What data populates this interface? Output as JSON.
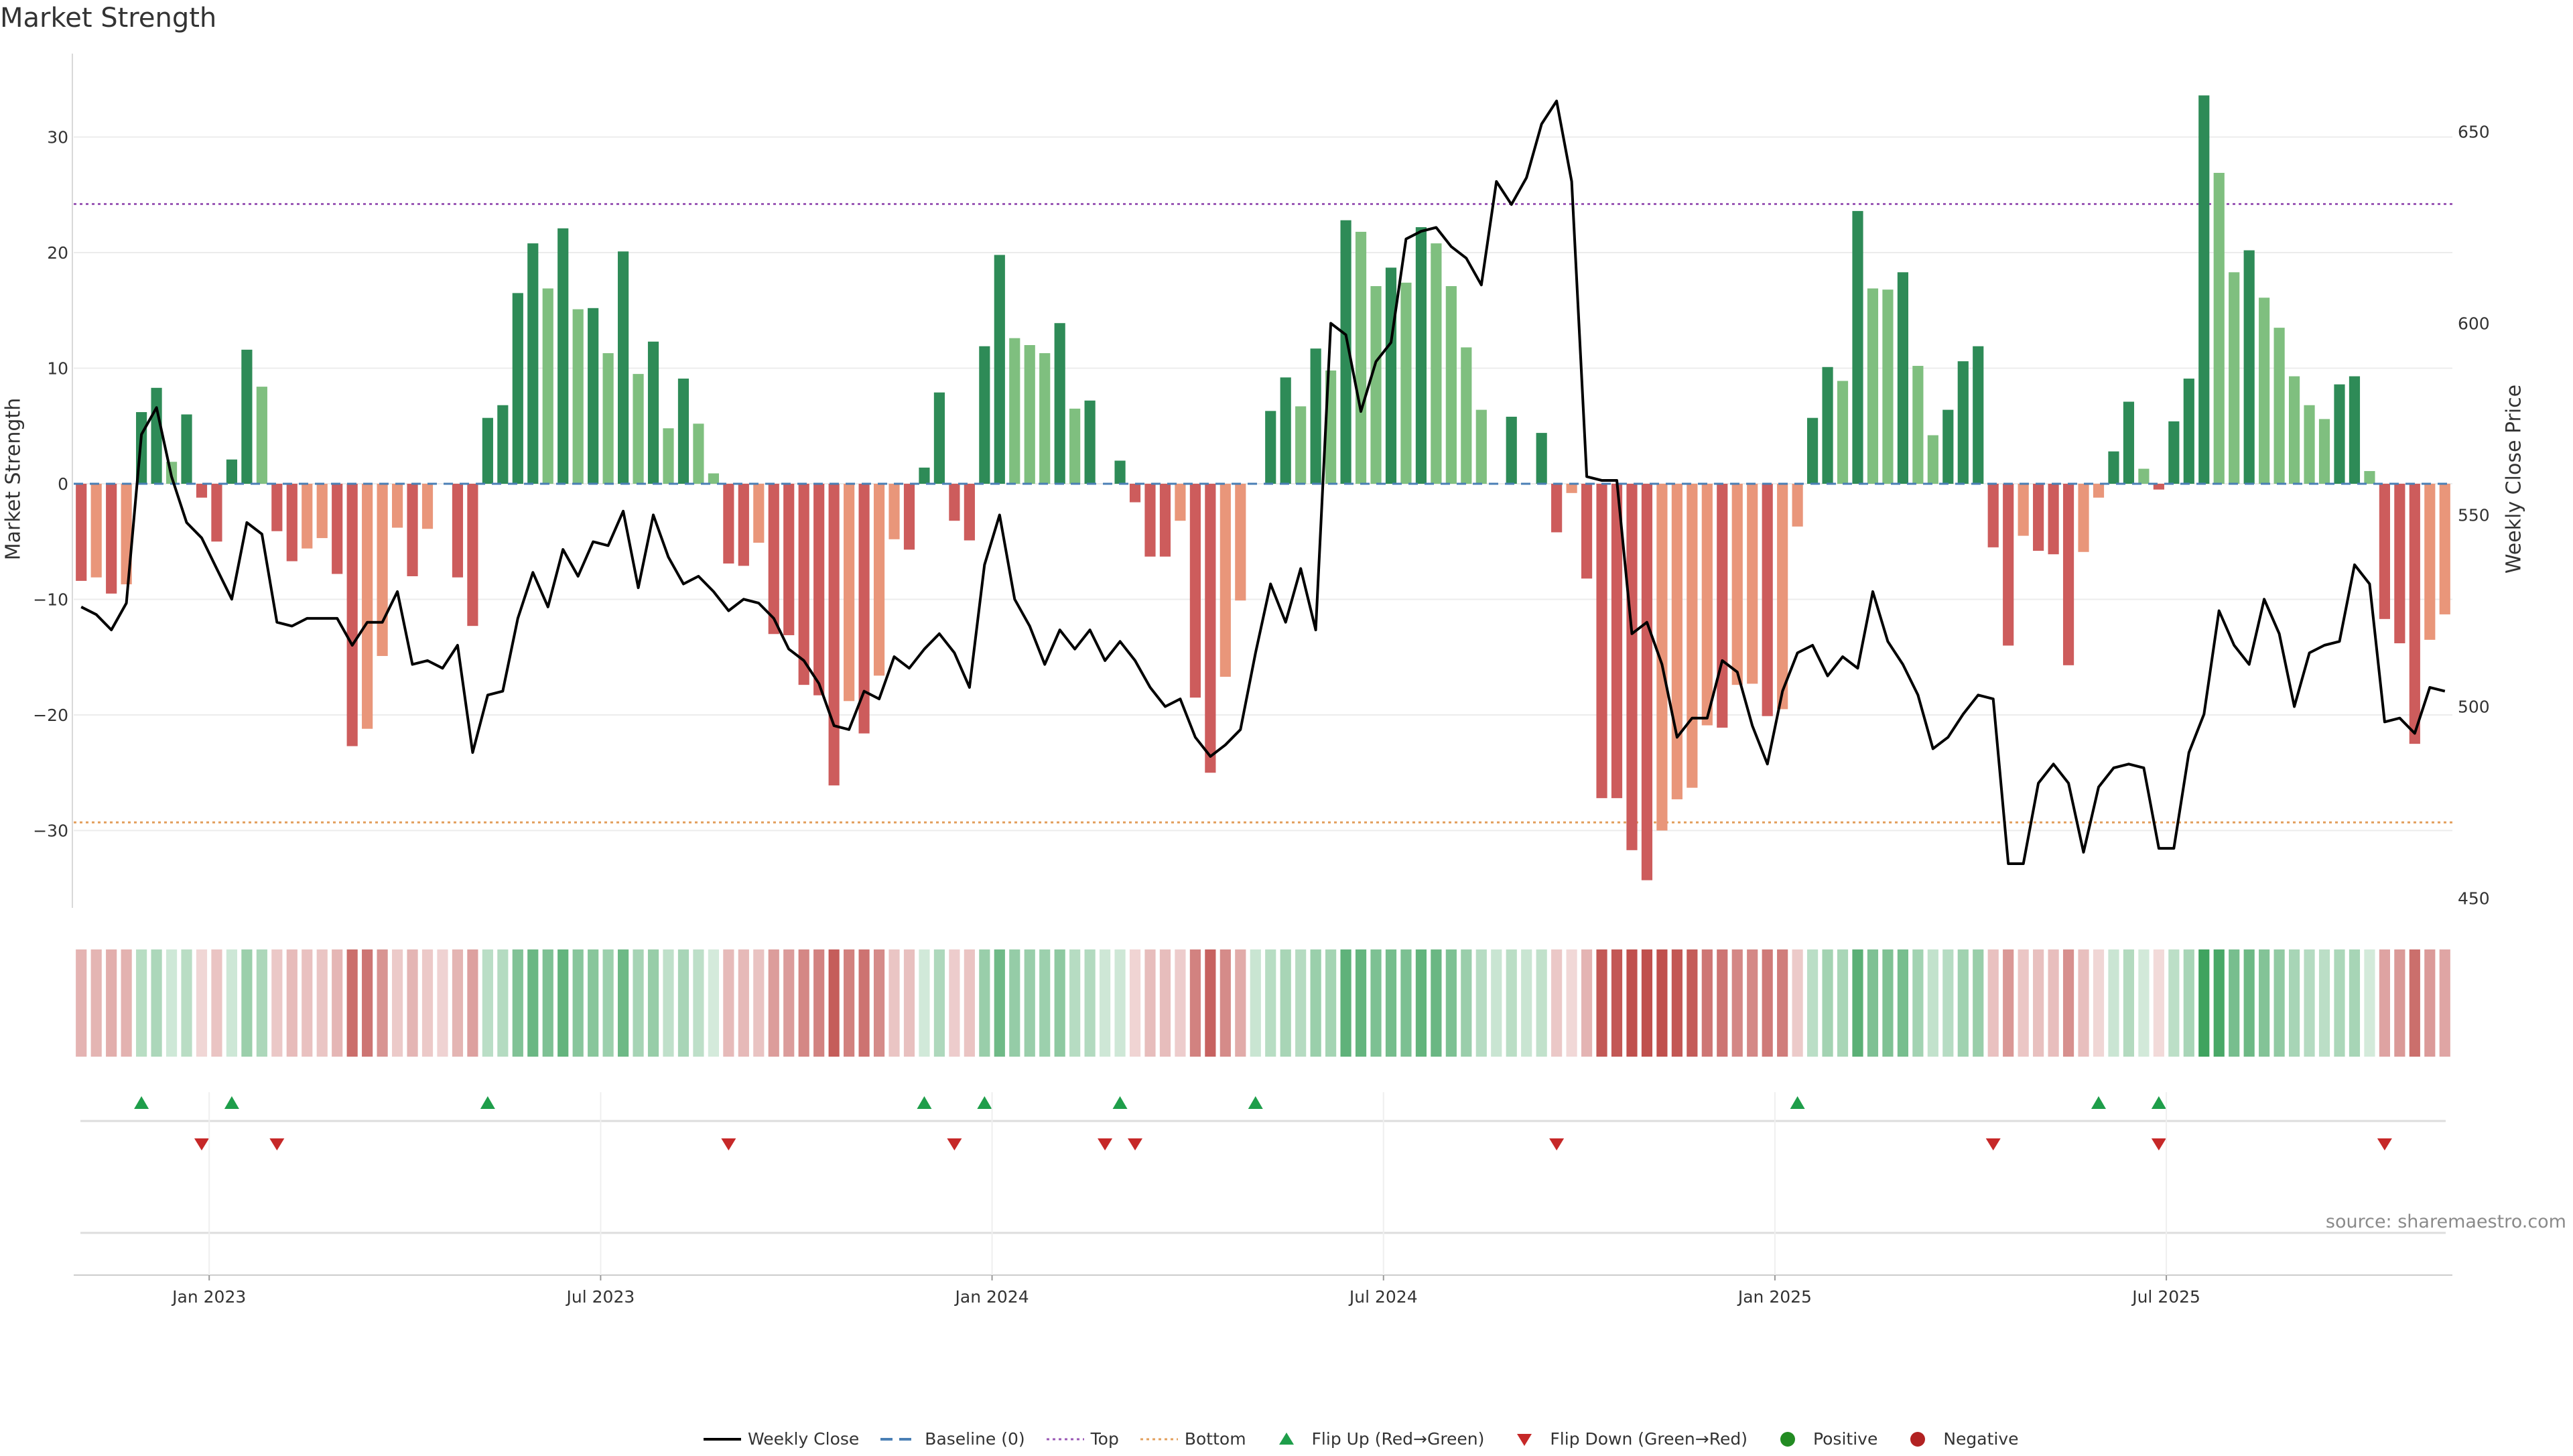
{
  "title": "Market Strength",
  "source": "source: sharemaestro.com",
  "colors": {
    "strong_green": "#2e8b57",
    "light_green": "#7fbf7f",
    "strong_red": "#cd5c5c",
    "light_red": "#e9967a",
    "price_line": "#000000",
    "baseline": "#4a7fb5",
    "top_line": "#9b59b6",
    "bottom_line": "#e3a05e",
    "flip_up": "#1e9e4a",
    "flip_down": "#c62828",
    "positive": "#228b22",
    "negative": "#b22222"
  },
  "legend": [
    {
      "key": "weekly_close",
      "label": "Weekly Close",
      "marker": "line"
    },
    {
      "key": "baseline",
      "label": "Baseline (0)",
      "marker": "dash"
    },
    {
      "key": "top",
      "label": "Top",
      "marker": "dotted"
    },
    {
      "key": "bottom",
      "label": "Bottom",
      "marker": "dotted"
    },
    {
      "key": "flip_up",
      "label": "Flip Up (Red→Green)",
      "marker": "triangle-up"
    },
    {
      "key": "flip_down",
      "label": "Flip Down (Green→Red)",
      "marker": "triangle-down"
    },
    {
      "key": "positive",
      "label": "Positive",
      "marker": "circle"
    },
    {
      "key": "negative",
      "label": "Negative",
      "marker": "circle"
    }
  ],
  "chart_data": {
    "type": "bar",
    "title": "Market Strength",
    "ylabel": "Market Strength",
    "ylabel_right": "Weekly Close Price",
    "ylim": [
      -37,
      37
    ],
    "yticks": [
      -30,
      -20,
      -10,
      0,
      10,
      20,
      30
    ],
    "y2lim": [
      445,
      667
    ],
    "y2ticks": [
      450,
      500,
      550,
      600,
      650
    ],
    "x_ticks": [
      {
        "label": "Jan 2023",
        "week": 9
      },
      {
        "label": "Jul 2023",
        "week": 35
      },
      {
        "label": "Jan 2024",
        "week": 61
      },
      {
        "label": "Jul 2024",
        "week": 87
      },
      {
        "label": "Jan 2025",
        "week": 113
      },
      {
        "label": "Jul 2025",
        "week": 139
      }
    ],
    "top_level": 24.2,
    "bottom_level": -29.3,
    "baseline": 0,
    "legend_position": "bottom-center",
    "grid": true,
    "strength": [
      -8.4,
      -8.1,
      -9.5,
      -8.7,
      6.2,
      8.3,
      1.9,
      6.0,
      -1.2,
      -5.0,
      2.1,
      11.6,
      8.4,
      -4.1,
      -6.7,
      -5.6,
      -4.7,
      -7.8,
      -22.7,
      -21.2,
      -14.9,
      -3.8,
      -8.0,
      -3.9,
      0,
      -8.1,
      -12.3,
      5.7,
      6.8,
      16.5,
      20.8,
      16.9,
      22.1,
      15.1,
      15.2,
      11.3,
      20.1,
      9.5,
      12.3,
      4.8,
      9.1,
      5.2,
      0.9,
      -6.9,
      -7.1,
      -5.1,
      -13.0,
      -13.1,
      -17.4,
      -18.3,
      -26.1,
      -18.8,
      -21.6,
      -16.6,
      -4.8,
      -5.7,
      1.4,
      7.9,
      -3.2,
      -4.9,
      11.9,
      19.8,
      12.6,
      12.0,
      11.3,
      13.9,
      6.5,
      7.2,
      0,
      2.0,
      -1.6,
      -6.3,
      -6.3,
      -3.2,
      -18.5,
      -25.0,
      -16.7,
      -10.1,
      0,
      6.3,
      9.2,
      6.7,
      11.7,
      9.8,
      22.8,
      21.8,
      17.1,
      18.7,
      17.4,
      22.2,
      20.8,
      17.1,
      11.8,
      6.4,
      0,
      5.8,
      0,
      4.4,
      -4.2,
      -0.8,
      -8.2,
      -27.2,
      -27.2,
      -31.7,
      -34.3,
      -30.0,
      -27.3,
      -26.3,
      -20.9,
      -21.1,
      -17.4,
      -17.3,
      -20.1,
      -19.5,
      -3.7,
      5.7,
      10.1,
      8.9,
      23.6,
      16.9,
      16.8,
      18.3,
      10.2,
      4.2,
      6.4,
      10.6,
      11.9,
      -5.5,
      -14.0,
      -4.5,
      -5.8,
      -6.1,
      -15.7,
      -5.9,
      -1.2,
      2.8,
      7.1,
      1.3,
      -0.5,
      5.4,
      9.1,
      33.6,
      26.9,
      18.3,
      20.2,
      16.1,
      13.5,
      9.3,
      6.8,
      5.6,
      8.6,
      9.3,
      1.1,
      -11.7,
      -13.8,
      -22.5,
      -13.5,
      -11.3
    ],
    "weekly_close": [
      526,
      524,
      520,
      527,
      571,
      578,
      560,
      548,
      544,
      536,
      528,
      548,
      545,
      522,
      521,
      523,
      523,
      523,
      516,
      522,
      522,
      530,
      511,
      512,
      510,
      516,
      488,
      503,
      504,
      523,
      535,
      526,
      541,
      534,
      543,
      542,
      551,
      531,
      550,
      539,
      532,
      534,
      530,
      525,
      528,
      527,
      523,
      515,
      512,
      506,
      495,
      494,
      504,
      502,
      513,
      510,
      515,
      519,
      514,
      505,
      537,
      550,
      528,
      521,
      511,
      520,
      515,
      520,
      512,
      517,
      512,
      505,
      500,
      502,
      492,
      487,
      490,
      494,
      514,
      532,
      522,
      536,
      520,
      600,
      597,
      577,
      590,
      595,
      622,
      624,
      625,
      620,
      617,
      610,
      637,
      631,
      638,
      652,
      658,
      637,
      560,
      559,
      559,
      519,
      522,
      511,
      492,
      497,
      497,
      512,
      509,
      495,
      485,
      504,
      514,
      516,
      508,
      513,
      510,
      530,
      517,
      511,
      503,
      489,
      492,
      498,
      503,
      502,
      459,
      459,
      480,
      485,
      480,
      462,
      479,
      484,
      485,
      484,
      463,
      463,
      488,
      498,
      525,
      516,
      511,
      528,
      519,
      500,
      514,
      516,
      517,
      537,
      532,
      496,
      497,
      493,
      505,
      504
    ],
    "state_strip_values": [
      -8.4,
      -8.1,
      -9.5,
      -8.7,
      6.2,
      8.3,
      1.9,
      6.0,
      -1.2,
      -5.0,
      2.1,
      11.6,
      8.4,
      -4.1,
      -6.7,
      -5.6,
      -4.7,
      -7.8,
      -22.7,
      -21.2,
      -14.9,
      -3.8,
      -8.0,
      -3.9,
      -2.0,
      -8.1,
      -12.3,
      5.7,
      6.8,
      16.5,
      20.8,
      16.9,
      22.1,
      15.1,
      15.2,
      11.3,
      20.1,
      9.5,
      12.3,
      4.8,
      9.1,
      5.2,
      0.9,
      -6.9,
      -7.1,
      -5.1,
      -13.0,
      -13.1,
      -17.4,
      -18.3,
      -26.1,
      -18.8,
      -21.6,
      -16.6,
      -4.8,
      -5.7,
      1.4,
      7.9,
      -3.2,
      -4.9,
      11.9,
      19.8,
      12.6,
      12.0,
      11.3,
      13.9,
      6.5,
      7.2,
      2.0,
      2.0,
      -1.6,
      -6.3,
      -6.3,
      -3.2,
      -18.5,
      -25.0,
      -16.7,
      -10.1,
      3.0,
      6.3,
      9.2,
      6.7,
      11.7,
      9.8,
      22.8,
      21.8,
      17.1,
      18.7,
      17.4,
      22.2,
      20.8,
      17.1,
      11.8,
      6.4,
      3.0,
      5.8,
      3.0,
      4.4,
      -4.2,
      -0.8,
      -8.2,
      -27.2,
      -27.2,
      -31.7,
      -34.3,
      -30.0,
      -27.3,
      -26.3,
      -20.9,
      -21.1,
      -17.4,
      -17.3,
      -20.1,
      -19.5,
      -3.7,
      5.7,
      10.1,
      8.9,
      23.6,
      16.9,
      16.8,
      18.3,
      10.2,
      4.2,
      6.4,
      10.6,
      11.9,
      -5.5,
      -14.0,
      -4.5,
      -5.8,
      -6.1,
      -15.7,
      -5.9,
      -1.2,
      2.8,
      7.1,
      1.3,
      -0.5,
      5.4,
      9.1,
      33.6,
      26.9,
      18.3,
      20.2,
      16.1,
      13.5,
      9.3,
      6.8,
      5.6,
      8.6,
      9.3,
      1.1,
      -11.7,
      -13.8,
      -22.5,
      -13.5,
      -11.3
    ],
    "flip_up_weeks": [
      4,
      10,
      27,
      56,
      60,
      69,
      78,
      114,
      134,
      138
    ],
    "flip_down_weeks": [
      8,
      13,
      43,
      58,
      68,
      70,
      98,
      127,
      138,
      153
    ]
  }
}
